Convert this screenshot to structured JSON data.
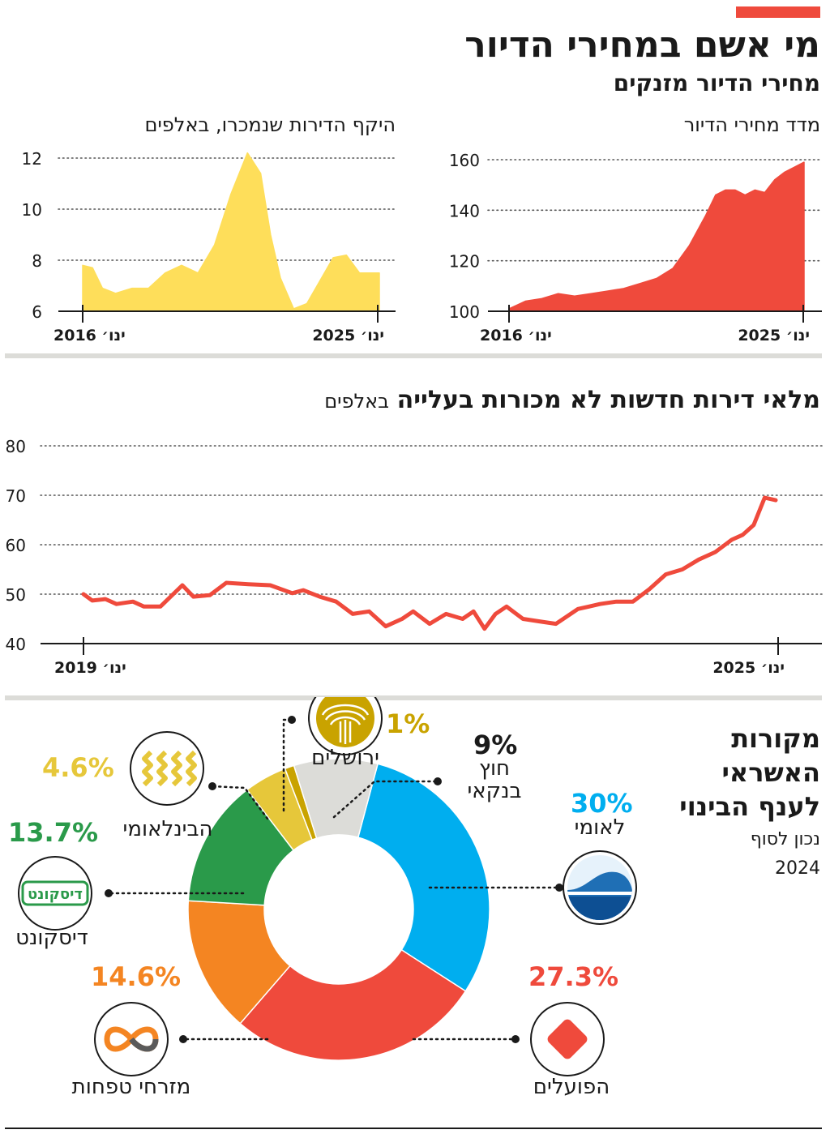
{
  "header": {
    "title": "מי אשם במחירי הדיור",
    "subtitle": "מחירי הדיור מזנקים"
  },
  "colors": {
    "accent_red": "#ef4a3c",
    "yellow": "#fede5a",
    "leumi_blue": "#00aeef",
    "discount_green": "#2a9a4a",
    "mizrahi_orange": "#f48522",
    "intl_yellow": "#e6c73a",
    "jerusalem_gold": "#c9a300",
    "nonbank_gray": "#dcdcd8"
  },
  "chart_data": [
    {
      "id": "price-index",
      "type": "area",
      "title": "מדד מחירי הדיור",
      "color": "#ef4a3c",
      "ylim": [
        100,
        160
      ],
      "yticks": [
        100,
        120,
        140,
        160
      ],
      "x_start_label": "ינו׳ 2016",
      "x_end_label": "ינו׳ 2025",
      "x": [
        2016.0,
        2016.5,
        2017.0,
        2017.5,
        2018.0,
        2018.5,
        2019.0,
        2019.5,
        2020.0,
        2020.5,
        2021.0,
        2021.5,
        2022.0,
        2022.3,
        2022.6,
        2022.9,
        2023.2,
        2023.5,
        2023.8,
        2024.1,
        2024.4,
        2024.7,
        2025.0
      ],
      "values": [
        101,
        104,
        105,
        107,
        106,
        107,
        108,
        109,
        111,
        113,
        117,
        126,
        138,
        146,
        148,
        148,
        146,
        148,
        147,
        152,
        155,
        157,
        159
      ]
    },
    {
      "id": "apartments-sold",
      "type": "area",
      "title": "היקף הדירות שנמכרו, באלפים",
      "color": "#fede5a",
      "ylim": [
        6,
        12
      ],
      "yticks": [
        6,
        8,
        10,
        12
      ],
      "x_start_label": "ינו׳ 2016",
      "x_end_label": "ינו׳ 2025",
      "x": [
        2016.0,
        2016.3,
        2016.6,
        2017.0,
        2017.5,
        2018.0,
        2018.5,
        2019.0,
        2019.5,
        2020.0,
        2020.5,
        2021.0,
        2021.4,
        2021.7,
        2022.0,
        2022.4,
        2022.8,
        2023.2,
        2023.6,
        2024.0,
        2024.4,
        2024.7,
        2025.0
      ],
      "values": [
        7.8,
        7.7,
        6.9,
        6.7,
        6.9,
        6.9,
        7.5,
        7.8,
        7.5,
        8.6,
        10.6,
        12.2,
        11.4,
        9.0,
        7.3,
        6.1,
        6.3,
        7.2,
        8.1,
        8.2,
        7.5,
        7.5,
        7.5
      ]
    },
    {
      "id": "unsold-inventory",
      "type": "line",
      "title": "מלאי דירות חדשות לא מכורות בעלייה",
      "title_bold": "מלאי דירות חדשות לא מכורות בעלייה",
      "title_unit": "באלפים",
      "color": "#ef4a3c",
      "ylim": [
        40,
        80
      ],
      "yticks": [
        40,
        50,
        60,
        70,
        80
      ],
      "x_start_label": "ינו׳ 2019",
      "x_end_label": "ינו׳ 2025",
      "x": [
        2019.0,
        2019.08,
        2019.2,
        2019.3,
        2019.45,
        2019.55,
        2019.7,
        2019.9,
        2020.0,
        2020.15,
        2020.3,
        2020.5,
        2020.7,
        2020.9,
        2021.0,
        2021.15,
        2021.3,
        2021.45,
        2021.6,
        2021.75,
        2021.9,
        2022.0,
        2022.15,
        2022.3,
        2022.45,
        2022.55,
        2022.65,
        2022.75,
        2022.85,
        2023.0,
        2023.15,
        2023.3,
        2023.5,
        2023.6,
        2023.7,
        2023.85,
        2024.0,
        2024.15,
        2024.3,
        2024.45,
        2024.6,
        2024.75,
        2024.9,
        2025.0,
        2025.1,
        2025.2,
        2025.3
      ],
      "values": [
        50,
        48.7,
        49,
        48,
        48.5,
        47.5,
        47.5,
        51.8,
        49.5,
        49.8,
        52.3,
        52,
        51.8,
        50.2,
        50.8,
        49.5,
        48.5,
        46,
        46.5,
        43.5,
        45,
        46.5,
        44,
        46,
        45,
        46.5,
        43,
        46,
        47.5,
        45,
        44.5,
        44,
        47,
        47.5,
        48,
        48.5,
        48.5,
        51,
        54,
        55,
        57,
        58.5,
        61,
        62,
        64,
        69.5,
        69
      ]
    },
    {
      "id": "credit-sources",
      "type": "pie",
      "title": "מקורות האשראי לענף הבינוי",
      "note": "נכון לסוף 2024",
      "slices": [
        {
          "name": "לאומי",
          "value": 30,
          "label": "30%",
          "color": "#00aeef"
        },
        {
          "name": "הפועלים",
          "value": 27.3,
          "label": "27.3%",
          "color": "#ef4a3c"
        },
        {
          "name": "מזרחי טפחות",
          "value": 14.6,
          "label": "14.6%",
          "color": "#f48522"
        },
        {
          "name": "דיסקונט",
          "value": 13.7,
          "label": "13.7%",
          "color": "#2a9a4a"
        },
        {
          "name": "הבינלאומי",
          "value": 4.6,
          "label": "4.6%",
          "color": "#e6c73a"
        },
        {
          "name": "ירושלים",
          "value": 1,
          "label": "1%",
          "color": "#c9a300"
        },
        {
          "name": "חוץ בנקאי",
          "value": 9,
          "label": "9%",
          "color": "#dcdcd8"
        }
      ]
    }
  ],
  "credit_labels": {
    "leumi": "לאומי",
    "hapoalim": "הפועלים",
    "mizrahi": "מזרחי טפחות",
    "discount": "דיסקונט",
    "intl": "הבינלאומי",
    "jerusalem": "ירושלים",
    "nonbank_line1": "חוץ",
    "nonbank_line2": "בנקאי",
    "discount_logo_text": "דיסקונט",
    "title_line1": "מקורות",
    "title_line2": "האשראי",
    "title_line3": "לענף הבינוי",
    "note_line1": "נכון לסוף",
    "note_line2": "2024"
  }
}
